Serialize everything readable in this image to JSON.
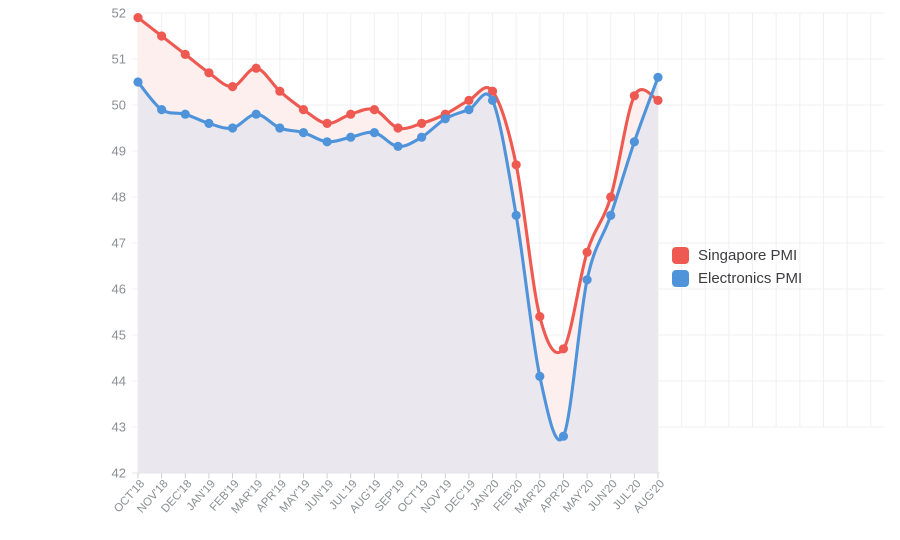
{
  "chart_data": {
    "type": "line",
    "title": "",
    "xlabel": "",
    "ylabel": "",
    "categories": [
      "OCT'18",
      "NOV'18",
      "DEC'18",
      "JAN'19",
      "FEB'19",
      "MAR'19",
      "APR'19",
      "MAY'19",
      "JUN'19",
      "JUL'19",
      "AUG'19",
      "SEP'19",
      "OCT'19",
      "NOV'19",
      "DEC'19",
      "JAN'20",
      "FEB'20",
      "MAR'20",
      "APR'20",
      "MAY'20",
      "JUN'20",
      "JUL'20",
      "AUG'20"
    ],
    "series": [
      {
        "name": "Singapore PMI",
        "color": "#ee5a52",
        "area_fill": "#fcefee",
        "values": [
          51.9,
          51.5,
          51.1,
          50.7,
          50.4,
          50.8,
          50.3,
          49.9,
          49.6,
          49.8,
          49.9,
          49.5,
          49.6,
          49.8,
          50.1,
          50.3,
          48.7,
          45.4,
          44.7,
          46.8,
          48.0,
          50.2,
          50.1
        ]
      },
      {
        "name": "Electronics PMI",
        "color": "#4f94da",
        "area_fill": "#eae7ee",
        "values": [
          50.5,
          49.9,
          49.8,
          49.6,
          49.5,
          49.8,
          49.5,
          49.4,
          49.2,
          49.3,
          49.4,
          49.1,
          49.3,
          49.7,
          49.9,
          50.1,
          47.6,
          44.1,
          42.8,
          46.2,
          47.6,
          49.2,
          50.6
        ]
      }
    ],
    "ylim": [
      42,
      52
    ],
    "y_tick_step": 1,
    "y_tick_labels": [
      "42",
      "43",
      "44",
      "45",
      "46",
      "47",
      "48",
      "49",
      "50",
      "51",
      "52"
    ],
    "smooth": true,
    "grid": true,
    "legend_position": "right",
    "colors": {
      "grid_line": "#f0f0f4",
      "axis_line": "#e3e5ea",
      "axis_tick": "#cdd0d6",
      "axis_label": "#8b8e93"
    }
  }
}
